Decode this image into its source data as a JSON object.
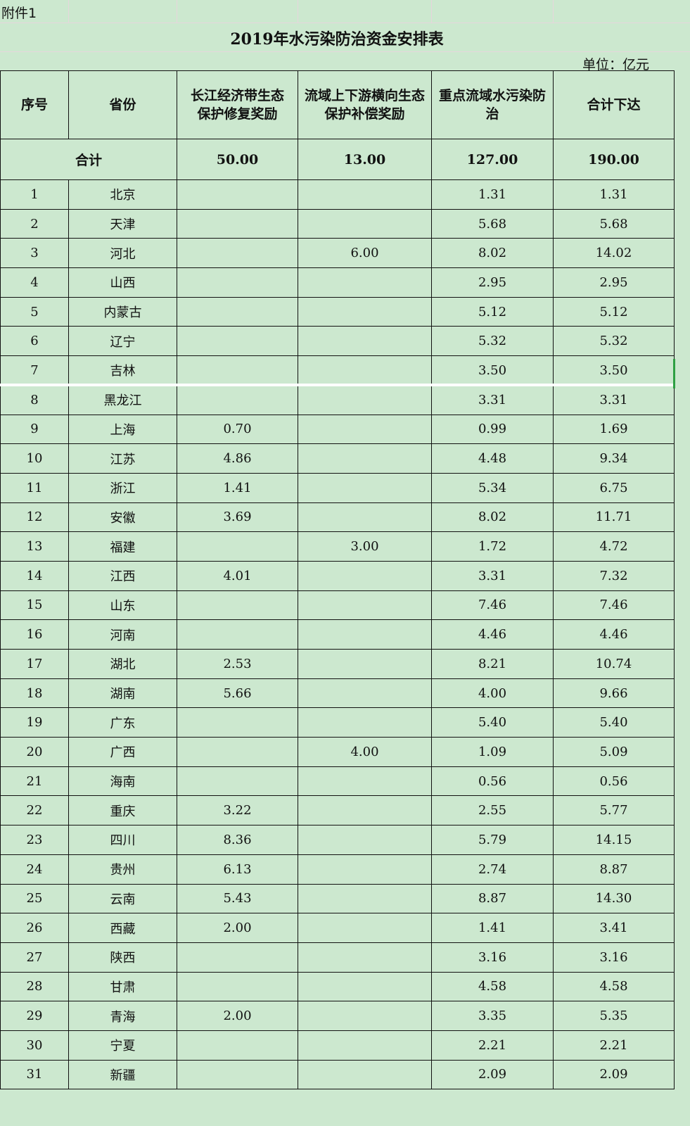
{
  "attachment_label": "附件1",
  "title": "2019年水污染防治资金安排表",
  "unit": "单位：亿元",
  "headers": [
    "序号",
    "省份",
    "长江经济带生态保护修复奖励",
    "流域上下游横向生态保护补偿奖励",
    "重点流域水污染防治",
    "合计下达"
  ],
  "total": {
    "label": "合计",
    "values": [
      "50.00",
      "13.00",
      "127.00",
      "190.00"
    ]
  },
  "rows": [
    [
      "1",
      "北京",
      "",
      "",
      "1.31",
      "1.31"
    ],
    [
      "2",
      "天津",
      "",
      "",
      "5.68",
      "5.68"
    ],
    [
      "3",
      "河北",
      "",
      "6.00",
      "8.02",
      "14.02"
    ],
    [
      "4",
      "山西",
      "",
      "",
      "2.95",
      "2.95"
    ],
    [
      "5",
      "内蒙古",
      "",
      "",
      "5.12",
      "5.12"
    ],
    [
      "6",
      "辽宁",
      "",
      "",
      "5.32",
      "5.32"
    ],
    [
      "7",
      "吉林",
      "",
      "",
      "3.50",
      "3.50"
    ],
    [
      "8",
      "黑龙江",
      "",
      "",
      "3.31",
      "3.31"
    ],
    [
      "9",
      "上海",
      "0.70",
      "",
      "0.99",
      "1.69"
    ],
    [
      "10",
      "江苏",
      "4.86",
      "",
      "4.48",
      "9.34"
    ],
    [
      "11",
      "浙江",
      "1.41",
      "",
      "5.34",
      "6.75"
    ],
    [
      "12",
      "安徽",
      "3.69",
      "",
      "8.02",
      "11.71"
    ],
    [
      "13",
      "福建",
      "",
      "3.00",
      "1.72",
      "4.72"
    ],
    [
      "14",
      "江西",
      "4.01",
      "",
      "3.31",
      "7.32"
    ],
    [
      "15",
      "山东",
      "",
      "",
      "7.46",
      "7.46"
    ],
    [
      "16",
      "河南",
      "",
      "",
      "4.46",
      "4.46"
    ],
    [
      "17",
      "湖北",
      "2.53",
      "",
      "8.21",
      "10.74"
    ],
    [
      "18",
      "湖南",
      "5.66",
      "",
      "4.00",
      "9.66"
    ],
    [
      "19",
      "广东",
      "",
      "",
      "5.40",
      "5.40"
    ],
    [
      "20",
      "广西",
      "",
      "4.00",
      "1.09",
      "5.09"
    ],
    [
      "21",
      "海南",
      "",
      "",
      "0.56",
      "0.56"
    ],
    [
      "22",
      "重庆",
      "3.22",
      "",
      "2.55",
      "5.77"
    ],
    [
      "23",
      "四川",
      "8.36",
      "",
      "5.79",
      "14.15"
    ],
    [
      "24",
      "贵州",
      "6.13",
      "",
      "2.74",
      "8.87"
    ],
    [
      "25",
      "云南",
      "5.43",
      "",
      "8.87",
      "14.30"
    ],
    [
      "26",
      "西藏",
      "2.00",
      "",
      "1.41",
      "3.41"
    ],
    [
      "27",
      "陕西",
      "",
      "",
      "3.16",
      "3.16"
    ],
    [
      "28",
      "甘肃",
      "",
      "",
      "4.58",
      "4.58"
    ],
    [
      "29",
      "青海",
      "2.00",
      "",
      "3.35",
      "5.35"
    ],
    [
      "30",
      "宁夏",
      "",
      "",
      "2.21",
      "2.21"
    ],
    [
      "31",
      "新疆",
      "",
      "",
      "2.09",
      "2.09"
    ]
  ]
}
